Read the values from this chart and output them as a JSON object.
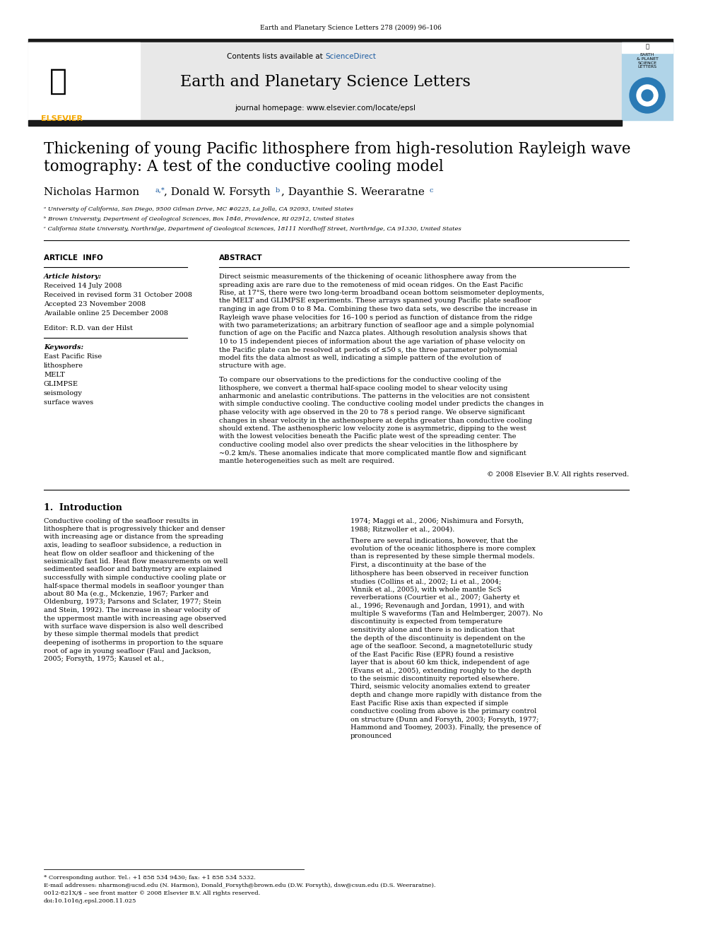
{
  "journal_header": "Earth and Planetary Science Letters 278 (2009) 96–106",
  "journal_name": "Earth and Planetary Science Letters",
  "journal_url": "journal homepage: www.elsevier.com/locate/epsl",
  "contents_line": "Contents lists available at ScienceDirect",
  "title": "Thickening of young Pacific lithosphere from high-resolution Rayleigh wave\ntomography: A test of the conductive cooling model",
  "authors": "Nicholas Harmon ᵃ,*, Donald W. Forsyth ᵇ, Dayanthie S. Weeraratne ᶜ",
  "affil_a": "ᵃ University of California, San Diego, 9500 Gilman Drive, MC #0225, La Jolla, CA 92093, United States",
  "affil_b": "ᵇ Brown University, Department of Geological Sciences, Box 1846, Providence, RI 02912, United States",
  "affil_c": "ᶜ California State University, Northridge, Department of Geological Sciences, 18111 Nordhoff Street, Northridge, CA 91330, United States",
  "article_info_header": "ARTICLE  INFO",
  "abstract_header": "ABSTRACT",
  "article_history_label": "Article history:",
  "received": "Received 14 July 2008",
  "received_revised": "Received in revised form 31 October 2008",
  "accepted": "Accepted 23 November 2008",
  "available": "Available online 25 December 2008",
  "editor": "Editor: R.D. van der Hilst",
  "keywords_label": "Keywords:",
  "keywords": [
    "East Pacific Rise",
    "lithosphere",
    "MELT",
    "GLIMPSE",
    "seismology",
    "surface waves"
  ],
  "abstract_text": "Direct seismic measurements of the thickening of oceanic lithosphere away from the spreading axis are rare due to the remoteness of mid ocean ridges. On the East Pacific Rise, at 17°S, there were two long-term broadband ocean bottom seismometer deployments, the MELT and GLIMPSE experiments. These arrays spanned young Pacific plate seafloor ranging in age from 0 to 8 Ma. Combining these two data sets, we describe the increase in Rayleigh wave phase velocities for 16–100 s period as function of distance from the ridge with two parameterizations; an arbitrary function of seafloor age and a simple polynomial function of age on the Pacific and Nazca plates. Although resolution analysis shows that 10 to 15 independent pieces of information about the age variation of phase velocity on the Pacific plate can be resolved at periods of ≤50 s, the three parameter polynomial model fits the data almost as well, indicating a simple pattern of the evolution of structure with age.",
  "abstract_text2": "To compare our observations to the predictions for the conductive cooling of the lithosphere, we convert a thermal half-space cooling model to shear velocity using anharmonic and anelastic contributions. The patterns in the velocities are not consistent with simple conductive cooling. The conductive cooling model under predicts the changes in phase velocity with age observed in the 20 to 78 s period range. We observe significant changes in shear velocity in the asthenosphere at depths greater than conductive cooling should extend. The asthenospheric low velocity zone is asymmetric, dipping to the west with the lowest velocities beneath the Pacific plate west of the spreading center. The conductive cooling model also over predicts the shear velocities in the lithosphere by ~0.2 km/s. These anomalies indicate that more complicated mantle flow and significant mantle heterogeneities such as melt are required.",
  "copyright": "© 2008 Elsevier B.V. All rights reserved.",
  "intro_header": "1.  Introduction",
  "intro_text1": "Conductive cooling of the seafloor results in lithosphere that is progressively thicker and denser with increasing age or distance from the spreading axis, leading to seafloor subsidence, a reduction in heat flow on older seafloor and thickening of the seismically fast lid. Heat flow measurements on well sedimented seafloor and bathymetry are explained successfully with simple conductive cooling plate or half-space thermal models in seafloor younger than about 80 Ma (e.g., Mckenzie, 1967; Parker and Oldenburg, 1973; Parsons and Sclater, 1977; Stein and Stein, 1992). The increase in shear velocity of the uppermost mantle with increasing age observed with surface wave dispersion is also well described by these simple thermal models that predict deepening of isotherms in proportion to the square root of age in young seafloor (Faul and Jackson, 2005; Forsyth, 1975; Kausel et al.,",
  "intro_text2": "1974; Maggi et al., 2006; Nishimura and Forsyth, 1988; Ritzwoller et al., 2004).",
  "intro_text3": "There are several indications, however, that the evolution of the oceanic lithosphere is more complex than is represented by these simple thermal models. First, a discontinuity at the base of the lithosphere has been observed in receiver function studies (Collins et al., 2002; Li et al., 2004; Vinnik et al., 2005), with whole mantle ScS reverberations (Courtier et al., 2007; Gaherty et al., 1996; Revenaugh and Jordan, 1991), and with multiple S waveforms (Tan and Helmberger, 2007). No discontinuity is expected from temperature sensitivity alone and there is no indication that the depth of the discontinuity is dependent on the age of the seafloor. Second, a magnetotelluric study of the East Pacific Rise (EPR) found a resistive layer that is about 60 km thick, independent of age (Evans et al., 2005), extending roughly to the depth to the seismic discontinuity reported elsewhere. Third, seismic velocity anomalies extend to greater depth and change more rapidly with distance from the East Pacific Rise axis than expected if simple conductive cooling from above is the primary control on structure (Dunn and Forsyth, 2003; Forsyth, 1977; Hammond and Toomey, 2003). Finally, the presence of pronounced",
  "footnote_star": "* Corresponding author. Tel.: +1 858 534 9430; fax: +1 858 534 5332.",
  "footnote_email": "E-mail addresses: nharmon@ucsd.edu (N. Harmon), Donald_Forsyth@brown.edu (D.W. Forsyth), dsw@csun.edu (D.S. Weeraratne).",
  "footnote_issn": "0012-821X/$ – see front matter © 2008 Elsevier B.V. All rights reserved.",
  "footnote_doi": "doi:10.1016/j.epsl.2008.11.025",
  "bg_color": "#ffffff",
  "header_bg": "#e8e8e8",
  "elsevier_orange": "#f5a800",
  "science_direct_blue": "#1a5aa0",
  "dark_bar": "#1a1a1a",
  "text_color": "#000000",
  "link_color": "#1a5aa0",
  "cite_color": "#1a5aa0"
}
